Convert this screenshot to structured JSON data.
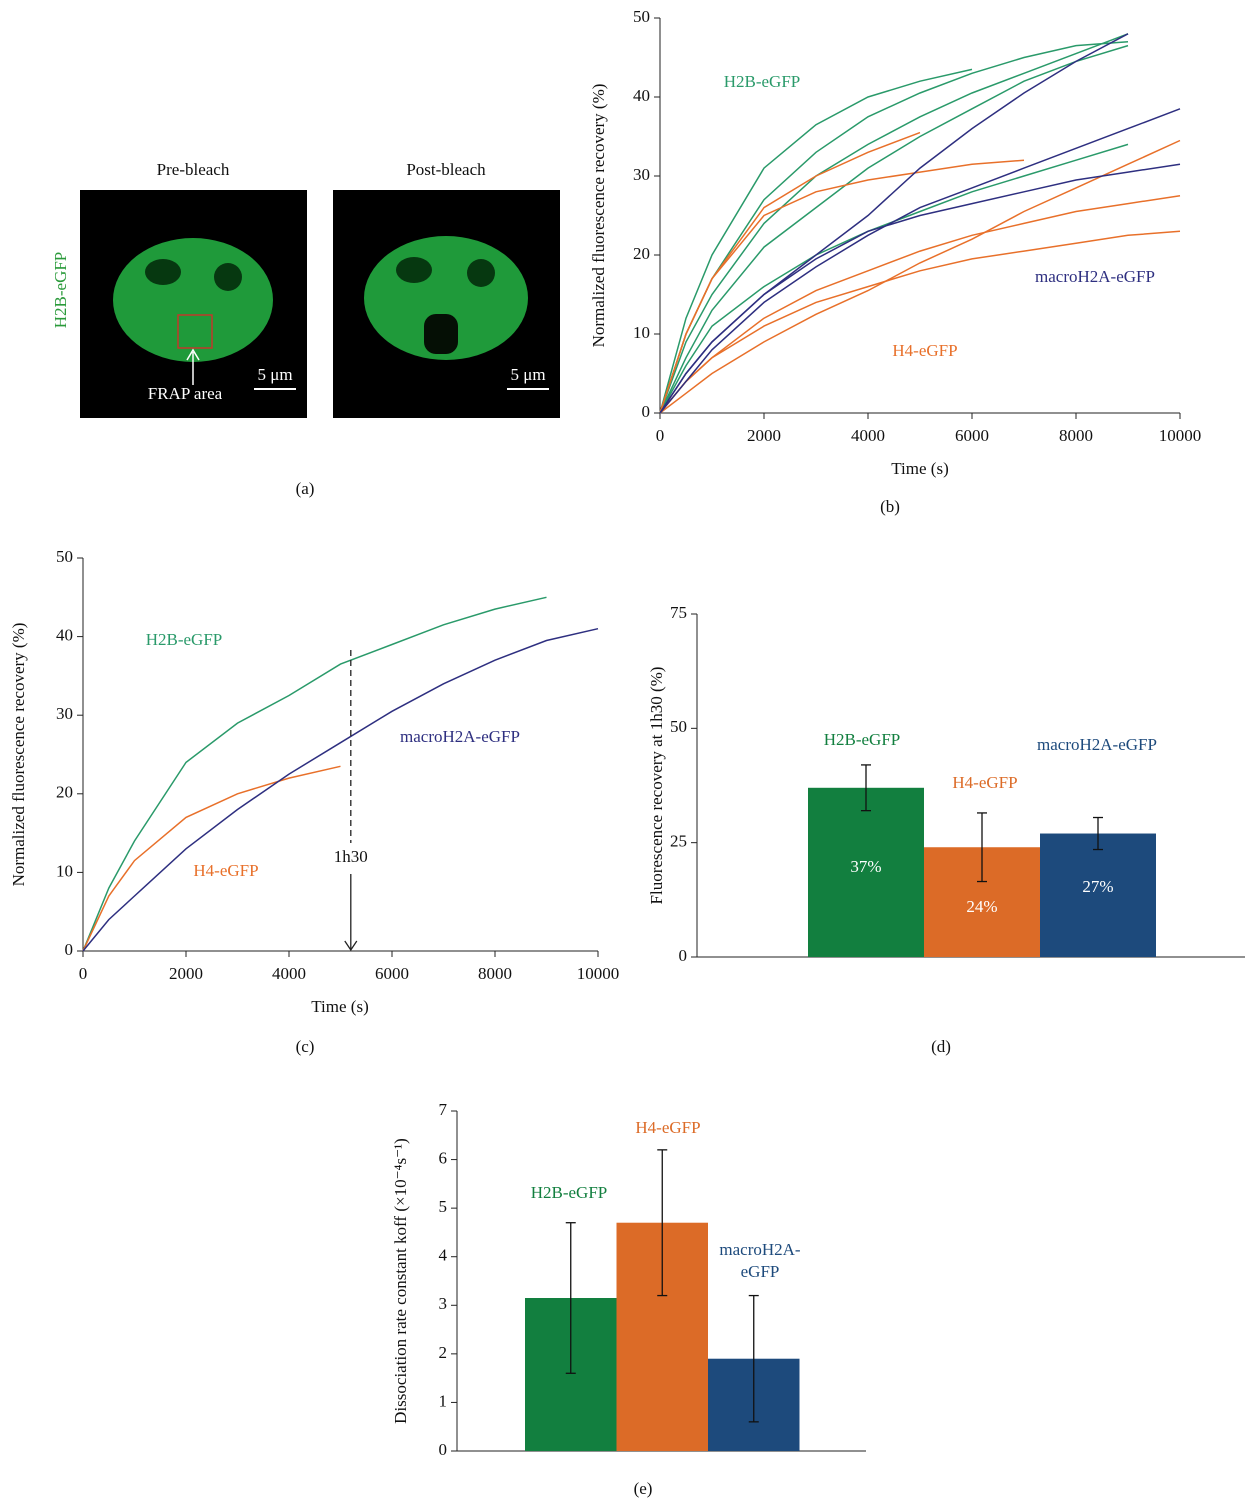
{
  "panel_a": {
    "columns": [
      "Pre-bleach",
      "Post-bleach"
    ],
    "channel": "H2B-eGFP",
    "roi_label": "FRAP area",
    "scale_bars": [
      "5 μm",
      "5 μm"
    ],
    "panel_label": "(a)"
  },
  "chart_data": [
    {
      "type": "line",
      "panel_label": "(b)",
      "x_label": "Time (s)",
      "y_label": "Normalized fluorescence recovery (%)",
      "x": [
        0,
        500,
        1000,
        2000,
        3000,
        4000,
        5000,
        6000,
        7000,
        8000,
        9000,
        10000
      ],
      "xlim": [
        0,
        10000
      ],
      "xticks": [
        0,
        2000,
        4000,
        6000,
        8000,
        10000
      ],
      "ylim": [
        0,
        50
      ],
      "yticks": [
        0,
        10,
        20,
        30,
        40,
        50
      ],
      "annotations": [
        {
          "text": "H2B-eGFP",
          "color": "#2a9a6a"
        },
        {
          "text": "macroH2A-eGFP",
          "color": "#2e2f80"
        },
        {
          "text": "H4-eGFP",
          "color": "#e8702a"
        }
      ],
      "series": [
        {
          "color": "#2a9a6a",
          "values": [
            0,
            12,
            20,
            31,
            36.5,
            40,
            42,
            43.5,
            null,
            null,
            null,
            null
          ]
        },
        {
          "color": "#2a9a6a",
          "values": [
            0,
            10,
            17,
            27,
            33,
            37.5,
            40.5,
            43,
            45,
            46.5,
            47,
            null
          ]
        },
        {
          "color": "#2a9a6a",
          "values": [
            0,
            9,
            15,
            24,
            30,
            34,
            37.5,
            40.5,
            43,
            45.5,
            48,
            null
          ]
        },
        {
          "color": "#2a9a6a",
          "values": [
            0,
            7,
            13,
            21,
            26,
            31,
            35,
            38.5,
            42,
            44.5,
            46.5,
            null
          ]
        },
        {
          "color": "#2a9a6a",
          "values": [
            0,
            6,
            11,
            16,
            20,
            23,
            25.5,
            28,
            30,
            32,
            34,
            null
          ]
        },
        {
          "color": "#e8702a",
          "values": [
            0,
            10,
            17,
            26,
            30,
            33,
            35.5,
            null,
            null,
            null,
            null,
            null
          ]
        },
        {
          "color": "#e8702a",
          "values": [
            0,
            10,
            17,
            25,
            28,
            29.5,
            30.5,
            31.5,
            32,
            null,
            null,
            null
          ]
        },
        {
          "color": "#e8702a",
          "values": [
            0,
            2.5,
            5,
            9,
            12.5,
            15.5,
            19,
            22,
            25.5,
            28.5,
            31.5,
            34.5
          ]
        },
        {
          "color": "#e8702a",
          "values": [
            0,
            4,
            7,
            12,
            15.5,
            18,
            20.5,
            22.5,
            24,
            25.5,
            26.5,
            27.5
          ]
        },
        {
          "color": "#e8702a",
          "values": [
            0,
            4,
            7,
            11,
            14,
            16,
            18,
            19.5,
            20.5,
            21.5,
            22.5,
            23
          ]
        },
        {
          "color": "#2e2f80",
          "values": [
            0,
            5,
            9,
            15,
            20,
            25,
            31,
            36,
            40.5,
            44.5,
            48,
            null
          ]
        },
        {
          "color": "#2e2f80",
          "values": [
            0,
            4,
            8,
            14,
            18.5,
            22.5,
            26,
            28.5,
            31,
            33.5,
            36,
            38.5
          ]
        },
        {
          "color": "#2e2f80",
          "values": [
            0,
            5,
            9,
            15,
            19.5,
            23,
            25,
            26.5,
            28,
            29.5,
            30.5,
            31.5
          ]
        }
      ]
    },
    {
      "type": "line",
      "panel_label": "(c)",
      "x_label": "Time (s)",
      "y_label": "Normalized fluorescence recovery (%)",
      "x": [
        0,
        500,
        1000,
        2000,
        3000,
        4000,
        5000,
        6000,
        7000,
        8000,
        9000,
        10000
      ],
      "xlim": [
        0,
        10000
      ],
      "xticks": [
        0,
        2000,
        4000,
        6000,
        8000,
        10000
      ],
      "ylim": [
        0,
        50
      ],
      "yticks": [
        0,
        10,
        20,
        30,
        40,
        50
      ],
      "annotations": [
        {
          "text": "H2B-eGFP",
          "color": "#2a9a6a"
        },
        {
          "text": "macroH2A-eGFP",
          "color": "#2e2f80"
        },
        {
          "text": "H4-eGFP",
          "color": "#e8702a"
        }
      ],
      "marker_x": 5200,
      "marker_label": "1h30",
      "series": [
        {
          "color": "#2a9a6a",
          "values": [
            0,
            8,
            14,
            24,
            29,
            32.5,
            36.5,
            39,
            41.5,
            43.5,
            45,
            null
          ]
        },
        {
          "color": "#e8702a",
          "values": [
            0,
            7,
            11.5,
            17,
            20,
            22,
            23.5,
            null,
            null,
            null,
            null,
            null
          ]
        },
        {
          "color": "#2e2f80",
          "values": [
            0,
            4,
            7,
            13,
            18,
            22.5,
            26.5,
            30.5,
            34,
            37,
            39.5,
            41
          ]
        }
      ]
    },
    {
      "type": "bar",
      "panel_label": "(d)",
      "y_label": "Fluorescence recovery at 1h30 (%)",
      "categories": [
        "H2B-eGFP",
        "H4-eGFP",
        "macroH2A-eGFP"
      ],
      "colors": [
        "#127f3f",
        "#dc6b27",
        "#1d4a7c"
      ],
      "values": [
        37,
        24,
        27
      ],
      "value_labels": [
        "37%",
        "24%",
        "27%"
      ],
      "errors": [
        5,
        7.5,
        3.5
      ],
      "ylim": [
        0,
        75
      ],
      "yticks": [
        0,
        25,
        50,
        75
      ]
    },
    {
      "type": "bar",
      "panel_label": "(e)",
      "y_label": "Dissociation rate constant koff (×10⁻⁴s⁻¹)",
      "categories": [
        "H2B-eGFP",
        "H4-eGFP",
        "macroH2A-eGFP"
      ],
      "colors": [
        "#127f3f",
        "#dc6b27",
        "#1d4a7c"
      ],
      "values": [
        3.15,
        4.7,
        1.9
      ],
      "errors": [
        1.55,
        1.5,
        1.3
      ],
      "ylim": [
        0,
        7
      ],
      "yticks": [
        0,
        1,
        2,
        3,
        4,
        5,
        6,
        7
      ]
    }
  ]
}
